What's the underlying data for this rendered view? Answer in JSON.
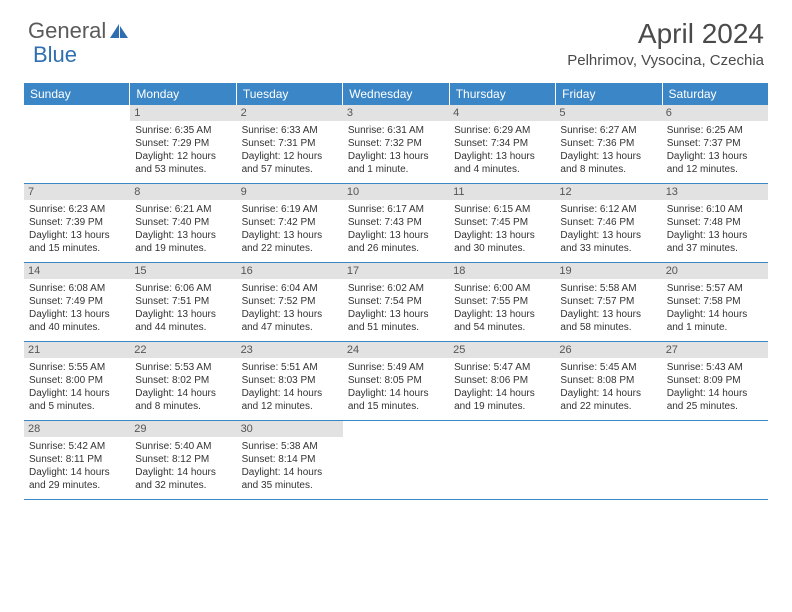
{
  "logo": {
    "text1": "General",
    "text2": "Blue"
  },
  "title": "April 2024",
  "location": "Pelhrimov, Vysocina, Czechia",
  "colors": {
    "header_blue": "#3b86c6",
    "daynum_bg": "#e2e2e2",
    "text": "#333333",
    "logo_gray": "#5a5a5a",
    "logo_blue": "#2f6fb0"
  },
  "day_names": [
    "Sunday",
    "Monday",
    "Tuesday",
    "Wednesday",
    "Thursday",
    "Friday",
    "Saturday"
  ],
  "first_weekday_index": 1,
  "days": [
    {
      "n": 1,
      "sr": "6:35 AM",
      "ss": "7:29 PM",
      "dl": "12 hours and 53 minutes."
    },
    {
      "n": 2,
      "sr": "6:33 AM",
      "ss": "7:31 PM",
      "dl": "12 hours and 57 minutes."
    },
    {
      "n": 3,
      "sr": "6:31 AM",
      "ss": "7:32 PM",
      "dl": "13 hours and 1 minute."
    },
    {
      "n": 4,
      "sr": "6:29 AM",
      "ss": "7:34 PM",
      "dl": "13 hours and 4 minutes."
    },
    {
      "n": 5,
      "sr": "6:27 AM",
      "ss": "7:36 PM",
      "dl": "13 hours and 8 minutes."
    },
    {
      "n": 6,
      "sr": "6:25 AM",
      "ss": "7:37 PM",
      "dl": "13 hours and 12 minutes."
    },
    {
      "n": 7,
      "sr": "6:23 AM",
      "ss": "7:39 PM",
      "dl": "13 hours and 15 minutes."
    },
    {
      "n": 8,
      "sr": "6:21 AM",
      "ss": "7:40 PM",
      "dl": "13 hours and 19 minutes."
    },
    {
      "n": 9,
      "sr": "6:19 AM",
      "ss": "7:42 PM",
      "dl": "13 hours and 22 minutes."
    },
    {
      "n": 10,
      "sr": "6:17 AM",
      "ss": "7:43 PM",
      "dl": "13 hours and 26 minutes."
    },
    {
      "n": 11,
      "sr": "6:15 AM",
      "ss": "7:45 PM",
      "dl": "13 hours and 30 minutes."
    },
    {
      "n": 12,
      "sr": "6:12 AM",
      "ss": "7:46 PM",
      "dl": "13 hours and 33 minutes."
    },
    {
      "n": 13,
      "sr": "6:10 AM",
      "ss": "7:48 PM",
      "dl": "13 hours and 37 minutes."
    },
    {
      "n": 14,
      "sr": "6:08 AM",
      "ss": "7:49 PM",
      "dl": "13 hours and 40 minutes."
    },
    {
      "n": 15,
      "sr": "6:06 AM",
      "ss": "7:51 PM",
      "dl": "13 hours and 44 minutes."
    },
    {
      "n": 16,
      "sr": "6:04 AM",
      "ss": "7:52 PM",
      "dl": "13 hours and 47 minutes."
    },
    {
      "n": 17,
      "sr": "6:02 AM",
      "ss": "7:54 PM",
      "dl": "13 hours and 51 minutes."
    },
    {
      "n": 18,
      "sr": "6:00 AM",
      "ss": "7:55 PM",
      "dl": "13 hours and 54 minutes."
    },
    {
      "n": 19,
      "sr": "5:58 AM",
      "ss": "7:57 PM",
      "dl": "13 hours and 58 minutes."
    },
    {
      "n": 20,
      "sr": "5:57 AM",
      "ss": "7:58 PM",
      "dl": "14 hours and 1 minute."
    },
    {
      "n": 21,
      "sr": "5:55 AM",
      "ss": "8:00 PM",
      "dl": "14 hours and 5 minutes."
    },
    {
      "n": 22,
      "sr": "5:53 AM",
      "ss": "8:02 PM",
      "dl": "14 hours and 8 minutes."
    },
    {
      "n": 23,
      "sr": "5:51 AM",
      "ss": "8:03 PM",
      "dl": "14 hours and 12 minutes."
    },
    {
      "n": 24,
      "sr": "5:49 AM",
      "ss": "8:05 PM",
      "dl": "14 hours and 15 minutes."
    },
    {
      "n": 25,
      "sr": "5:47 AM",
      "ss": "8:06 PM",
      "dl": "14 hours and 19 minutes."
    },
    {
      "n": 26,
      "sr": "5:45 AM",
      "ss": "8:08 PM",
      "dl": "14 hours and 22 minutes."
    },
    {
      "n": 27,
      "sr": "5:43 AM",
      "ss": "8:09 PM",
      "dl": "14 hours and 25 minutes."
    },
    {
      "n": 28,
      "sr": "5:42 AM",
      "ss": "8:11 PM",
      "dl": "14 hours and 29 minutes."
    },
    {
      "n": 29,
      "sr": "5:40 AM",
      "ss": "8:12 PM",
      "dl": "14 hours and 32 minutes."
    },
    {
      "n": 30,
      "sr": "5:38 AM",
      "ss": "8:14 PM",
      "dl": "14 hours and 35 minutes."
    }
  ],
  "labels": {
    "sunrise": "Sunrise:",
    "sunset": "Sunset:",
    "daylight": "Daylight:"
  }
}
